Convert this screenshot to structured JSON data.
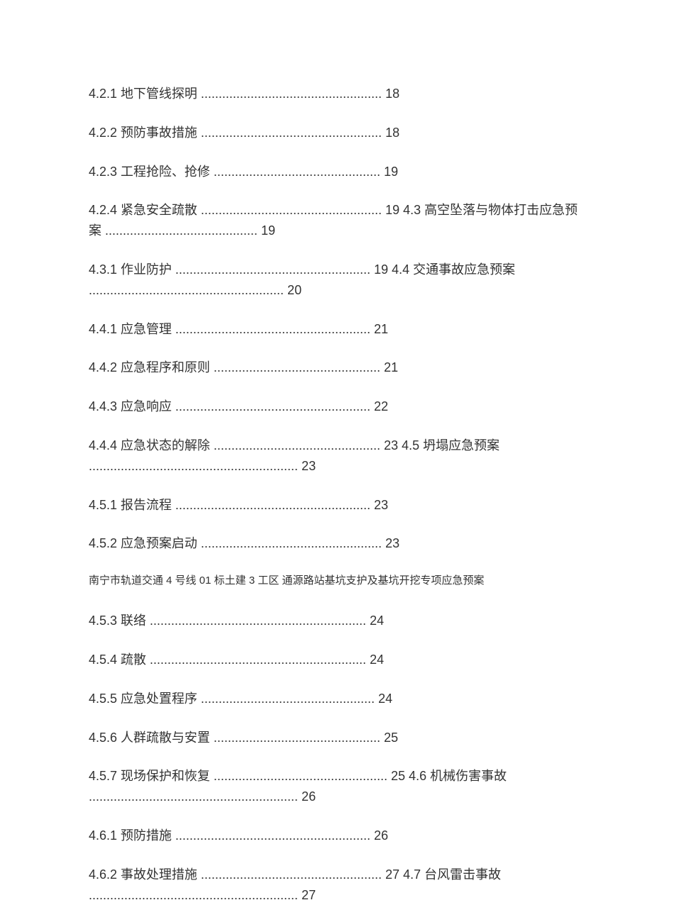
{
  "doc": {
    "text_color": "#333333",
    "bg_color": "#ffffff",
    "font_size_main": 18,
    "font_size_footer": 15,
    "entries": [
      {
        "text": "4.2.1 地下管线探明 ................................................... 18"
      },
      {
        "text": "4.2.2 预防事故措施 ................................................... 18"
      },
      {
        "text": "4.2.3 工程抢险、抢修 ............................................... 19"
      },
      {
        "text": "4.2.4 紧急安全疏散 ................................................... 19 4.3 高空坠落与物体打击应急预案 ........................................... 19"
      },
      {
        "text": "4.3.1 作业防护 ....................................................... 19 4.4 交通事故应急预案 ....................................................... 20"
      },
      {
        "text": "4.4.1 应急管理 ....................................................... 21"
      },
      {
        "text": "4.4.2 应急程序和原则 ............................................... 21"
      },
      {
        "text": "4.4.3 应急响应 ....................................................... 22"
      },
      {
        "text": "4.4.4 应急状态的解除 ............................................... 23 4.5 坍塌应急预案 ........................................................... 23"
      },
      {
        "text": "4.5.1 报告流程 ....................................................... 23"
      },
      {
        "text": "4.5.2 应急预案启动 ................................................... 23"
      }
    ],
    "footer_note": "南宁市轨道交通 4 号线 01 标土建 3 工区 通源路站基坑支护及基坑开挖专项应急预案",
    "entries2": [
      {
        "text": "4.5.3 联络 ............................................................. 24"
      },
      {
        "text": "4.5.4 疏散 ............................................................. 24"
      },
      {
        "text": "4.5.5 应急处置程序 ................................................. 24"
      },
      {
        "text": "4.5.6 人群疏散与安置 ............................................... 25"
      },
      {
        "text": "4.5.7 现场保护和恢复 ................................................. 25 4.6 机械伤害事故 ........................................................... 26"
      },
      {
        "text": "4.6.1 预防措施 ....................................................... 26"
      },
      {
        "text": "4.6.2 事故处理措施 ................................................... 27 4.7 台风雷击事故 ........................................................... 27"
      }
    ]
  }
}
